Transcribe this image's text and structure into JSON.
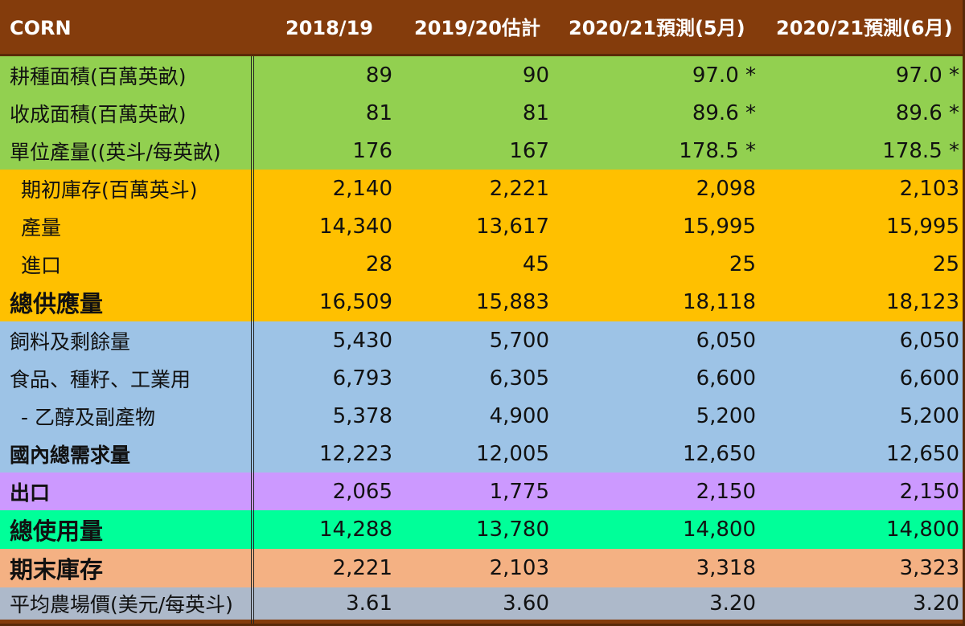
{
  "header": {
    "label": "CORN",
    "columns": [
      "2018/19",
      "2019/20估計",
      "2020/21預測(5月)",
      "2020/21預測(6月)"
    ]
  },
  "colors": {
    "header_bg": "#843c0c",
    "area_green": "#92d050",
    "supply_orange": "#ffc000",
    "demand_blue": "#9dc3e6",
    "export_purple": "#cc99ff",
    "total_use_green": "#00ff99",
    "ending_salmon": "#f4b183",
    "price_gray": "#adb9ca"
  },
  "rows": [
    {
      "label": "耕種面積(百萬英畝)",
      "values": [
        "89",
        "90",
        "97.0 *",
        "97.0 *"
      ]
    },
    {
      "label": "收成面積(百萬英畝)",
      "values": [
        "81",
        "81",
        "89.6 *",
        "89.6 *"
      ]
    },
    {
      "label": "單位產量((英斗/每英畝)",
      "values": [
        "176",
        "167",
        "178.5 *",
        "178.5 *"
      ]
    },
    {
      "label": "期初庫存(百萬英斗)",
      "values": [
        "2,140",
        "2,221",
        "2,098",
        "2,103"
      ]
    },
    {
      "label": "產量",
      "values": [
        "14,340",
        "13,617",
        "15,995",
        "15,995"
      ]
    },
    {
      "label": "進口",
      "values": [
        "28",
        "45",
        "25",
        "25"
      ]
    },
    {
      "label": "總供應量",
      "values": [
        "16,509",
        "15,883",
        "18,118",
        "18,123"
      ]
    },
    {
      "label": "飼料及剩餘量",
      "values": [
        "5,430",
        "5,700",
        "6,050",
        "6,050"
      ]
    },
    {
      "label": "食品、種籽、工業用",
      "values": [
        "6,793",
        "6,305",
        "6,600",
        "6,600"
      ]
    },
    {
      "label": "- 乙醇及副產物",
      "values": [
        "5,378",
        "4,900",
        "5,200",
        "5,200"
      ]
    },
    {
      "label": "國內總需求量",
      "values": [
        "12,223",
        "12,005",
        "12,650",
        "12,650"
      ]
    },
    {
      "label": "出口",
      "values": [
        "2,065",
        "1,775",
        "2,150",
        "2,150"
      ]
    },
    {
      "label": "總使用量",
      "values": [
        "14,288",
        "13,780",
        "14,800",
        "14,800"
      ]
    },
    {
      "label": "期末庫存",
      "values": [
        "2,221",
        "2,103",
        "3,318",
        "3,323"
      ]
    },
    {
      "label": "平均農場價(美元/每英斗)",
      "values": [
        "3.61",
        "3.60",
        "3.20",
        "3.20"
      ]
    }
  ]
}
